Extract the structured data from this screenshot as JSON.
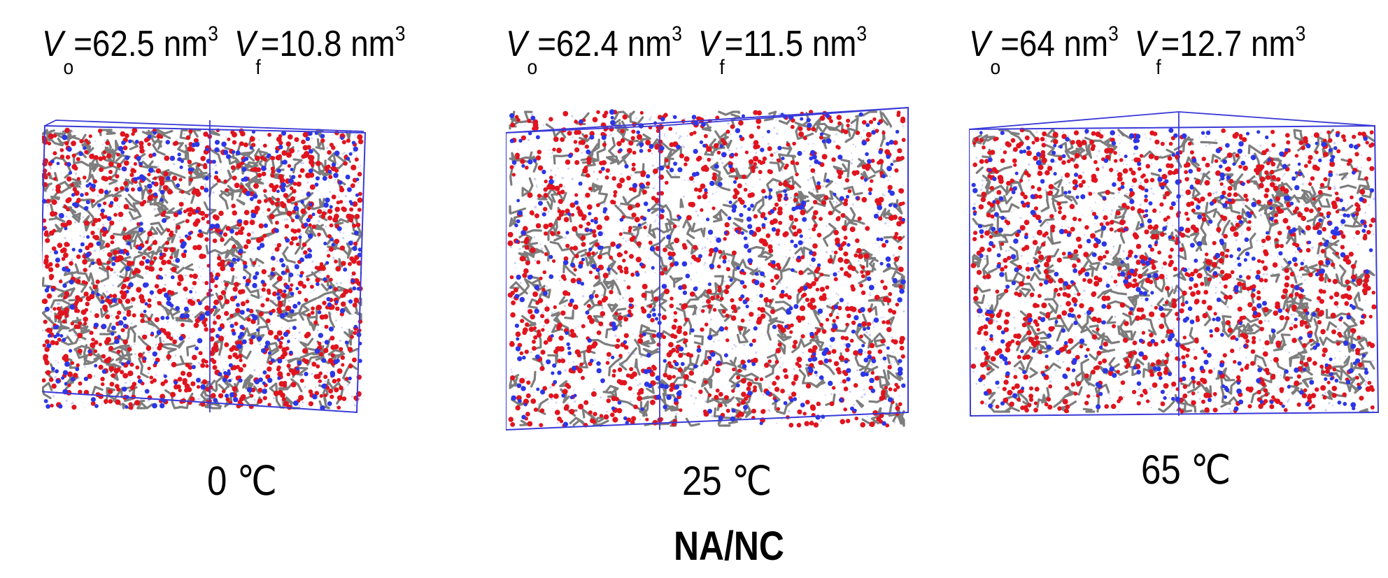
{
  "panels": [
    {
      "vo_label": "V",
      "vo_sub": "o",
      "vo_value": "=62.5 nm",
      "vo_exp": "3",
      "vf_label": "V",
      "vf_sub": "f",
      "vf_value": "=10.8 nm",
      "vf_exp": "3",
      "temperature": "0 ℃"
    },
    {
      "vo_label": "V",
      "vo_sub": "o",
      "vo_value": "=62.4 nm",
      "vo_exp": "3",
      "vf_label": "V",
      "vf_sub": "f",
      "vf_value": "=11.5 nm",
      "vf_exp": "3",
      "temperature": "25 ℃"
    },
    {
      "vo_label": "V",
      "vo_sub": "o",
      "vo_value": "=64 nm",
      "vo_exp": "3",
      "vf_label": "V",
      "vf_sub": "f",
      "vf_value": "=12.7 nm",
      "vf_exp": "3",
      "temperature": "65 ℃"
    }
  ],
  "caption": "NA/NC",
  "colors": {
    "box_edge": "#3a3ad8",
    "oxygen": "#e0141e",
    "nitrogen": "#2c36e6",
    "carbon": "#7d7d7d",
    "hydrogen_halo": "#b9bff0"
  }
}
